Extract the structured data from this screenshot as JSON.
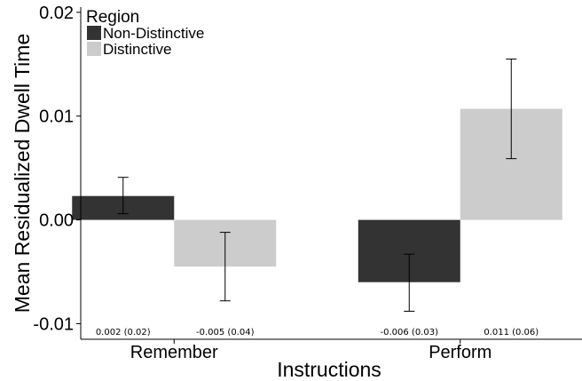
{
  "chart_data": {
    "type": "bar",
    "xlabel": "Instructions",
    "ylabel": "Mean Residualized Dwell Time",
    "categories": [
      "Remember",
      "Perform"
    ],
    "ylim": [
      -0.0115,
      0.0205
    ],
    "yticks": [
      -0.01,
      0.0,
      0.01,
      0.02
    ],
    "ytick_labels": [
      "-0.01",
      "0.00",
      "0.01",
      "0.02"
    ],
    "legend": {
      "title": "Region",
      "placement": "top-left"
    },
    "series": [
      {
        "name": "Non-Distinctive",
        "color": "#333333",
        "values": [
          0.0023,
          -0.006
        ],
        "error_low": [
          0.0006,
          -0.0088
        ],
        "error_high": [
          0.0041,
          -0.0033
        ],
        "annotations": [
          "0.002 (0.02)",
          "-0.006 (0.03)"
        ]
      },
      {
        "name": "Distinctive",
        "color": "#cccccc",
        "values": [
          -0.0045,
          0.0107
        ],
        "error_low": [
          -0.0078,
          0.0059
        ],
        "error_high": [
          -0.0012,
          0.0155
        ],
        "annotations": [
          "-0.005 (0.04)",
          "0.011 (0.06)"
        ]
      }
    ],
    "grid": false
  }
}
